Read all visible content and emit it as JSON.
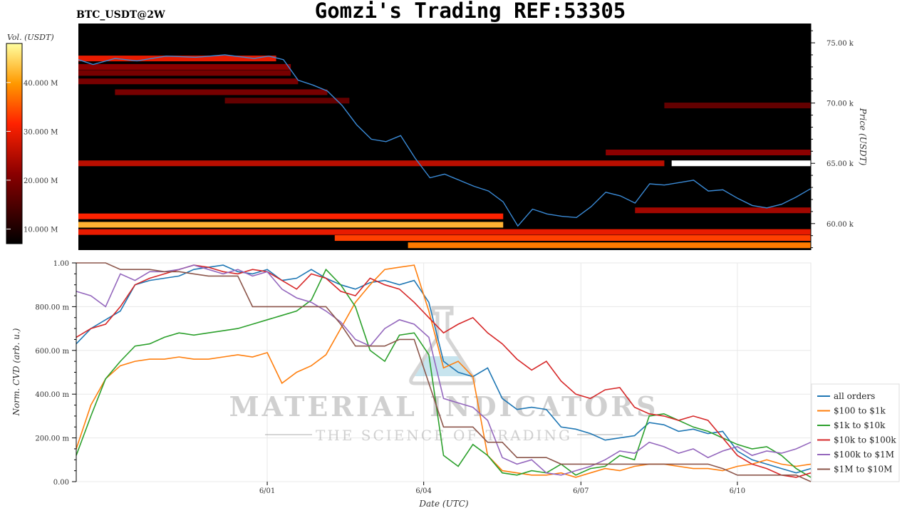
{
  "header": {
    "title": "Gomzi's Trading REF:53305",
    "pair": "BTC_USDT@2W"
  },
  "watermark": {
    "line1": "MATERIAL INDICATORS",
    "line2": "THE SCIENCE OF TRADING"
  },
  "colors": {
    "heatmap_bg": "#000000",
    "price_line": "#3a8ad6",
    "all_orders": "#1f77b4",
    "100_to_1k": "#ff7f0e",
    "1k_to_10k": "#2ca02c",
    "10k_to_100k": "#d62728",
    "100k_to_1M": "#9467bd",
    "1M_to_10M": "#8c564b"
  },
  "chart_data": [
    {
      "type": "heatmap",
      "ylabel": "Price (USDT)",
      "ytick_labels": [
        "75.00 k",
        "70.00 k",
        "65.00 k",
        "60.00 k"
      ],
      "yticks": [
        75000,
        70000,
        65000,
        60000
      ],
      "ylim": [
        57800,
        76600
      ],
      "colorbar": {
        "label": "Vol. (USDT)",
        "tick_labels": [
          "40.000 M",
          "30.000 M",
          "20.000 M",
          "10.000 M"
        ],
        "ticks": [
          40,
          30,
          20,
          10
        ],
        "range": [
          7,
          48
        ],
        "colormap": "hot"
      },
      "liquidity_bands": [
        {
          "price": 73700,
          "start": 0.0,
          "end": 0.27,
          "intensity": 0.55
        },
        {
          "price": 73000,
          "start": 0.0,
          "end": 0.29,
          "intensity": 0.35
        },
        {
          "price": 72500,
          "start": 0.0,
          "end": 0.29,
          "intensity": 0.3
        },
        {
          "price": 71800,
          "start": 0.0,
          "end": 0.3,
          "intensity": 0.3
        },
        {
          "price": 70900,
          "start": 0.05,
          "end": 0.34,
          "intensity": 0.3
        },
        {
          "price": 70200,
          "start": 0.2,
          "end": 0.37,
          "intensity": 0.25
        },
        {
          "price": 69800,
          "start": 0.8,
          "end": 1.0,
          "intensity": 0.25
        },
        {
          "price": 65900,
          "start": 0.72,
          "end": 1.0,
          "intensity": 0.35
        },
        {
          "price": 65000,
          "start": 0.0,
          "end": 0.8,
          "intensity": 0.45
        },
        {
          "price": 65000,
          "start": 0.81,
          "end": 1.0,
          "intensity": 1.0
        },
        {
          "price": 61100,
          "start": 0.76,
          "end": 1.0,
          "intensity": 0.4
        },
        {
          "price": 60600,
          "start": 0.0,
          "end": 0.58,
          "intensity": 0.6
        },
        {
          "price": 59900,
          "start": 0.0,
          "end": 0.58,
          "intensity": 0.85
        },
        {
          "price": 59300,
          "start": 0.0,
          "end": 1.0,
          "intensity": 0.55
        },
        {
          "price": 58800,
          "start": 0.35,
          "end": 1.0,
          "intensity": 0.65
        },
        {
          "price": 58200,
          "start": 0.45,
          "end": 1.0,
          "intensity": 0.75
        }
      ],
      "price_series": {
        "x": [
          0.0,
          0.02,
          0.05,
          0.08,
          0.12,
          0.16,
          0.2,
          0.24,
          0.26,
          0.28,
          0.3,
          0.32,
          0.34,
          0.36,
          0.38,
          0.4,
          0.42,
          0.44,
          0.46,
          0.48,
          0.5,
          0.52,
          0.54,
          0.56,
          0.58,
          0.6,
          0.62,
          0.64,
          0.66,
          0.68,
          0.7,
          0.72,
          0.74,
          0.76,
          0.78,
          0.8,
          0.82,
          0.84,
          0.86,
          0.88,
          0.9,
          0.92,
          0.94,
          0.96,
          0.98,
          1.0
        ],
        "y": [
          73600,
          73200,
          73700,
          73500,
          73900,
          73800,
          74000,
          73700,
          73900,
          73600,
          71900,
          71500,
          71000,
          69800,
          68200,
          67000,
          66800,
          67300,
          65400,
          63800,
          64100,
          63600,
          63100,
          62700,
          61800,
          59800,
          61200,
          60800,
          60600,
          60500,
          61400,
          62600,
          62300,
          61700,
          63300,
          63200,
          63400,
          63600,
          62700,
          62800,
          62100,
          61500,
          61300,
          61600,
          62200,
          62900
        ]
      }
    },
    {
      "type": "line",
      "xlabel": "Date (UTC)",
      "ylabel": "Norm. CVD (arb. u.)",
      "ylim": [
        0,
        1
      ],
      "ytick_labels": [
        "0.00",
        "200.00 m",
        "400.00 m",
        "600.00 m",
        "800.00 m",
        "1.00"
      ],
      "yticks": [
        0,
        0.2,
        0.4,
        0.6,
        0.8,
        1.0
      ],
      "xtick_labels": [
        "6/01",
        "6/04",
        "6/07",
        "6/10"
      ],
      "xticks": [
        0.26,
        0.473,
        0.687,
        0.9
      ],
      "xlim": [
        0,
        1
      ],
      "legend": {
        "position": "right"
      },
      "x": [
        0.0,
        0.02,
        0.04,
        0.06,
        0.08,
        0.1,
        0.12,
        0.14,
        0.16,
        0.18,
        0.2,
        0.22,
        0.24,
        0.26,
        0.28,
        0.3,
        0.32,
        0.34,
        0.36,
        0.38,
        0.4,
        0.42,
        0.44,
        0.46,
        0.48,
        0.5,
        0.52,
        0.54,
        0.56,
        0.58,
        0.6,
        0.62,
        0.64,
        0.66,
        0.68,
        0.7,
        0.72,
        0.74,
        0.76,
        0.78,
        0.8,
        0.82,
        0.84,
        0.86,
        0.88,
        0.9,
        0.92,
        0.94,
        0.96,
        0.98,
        1.0
      ],
      "series": [
        {
          "name": "all orders",
          "color_key": "all_orders",
          "values": [
            0.63,
            0.7,
            0.74,
            0.78,
            0.9,
            0.92,
            0.93,
            0.94,
            0.97,
            0.98,
            0.99,
            0.96,
            0.95,
            0.97,
            0.92,
            0.93,
            0.97,
            0.93,
            0.9,
            0.88,
            0.91,
            0.92,
            0.9,
            0.92,
            0.82,
            0.55,
            0.5,
            0.48,
            0.52,
            0.38,
            0.33,
            0.34,
            0.33,
            0.25,
            0.24,
            0.22,
            0.19,
            0.2,
            0.21,
            0.27,
            0.26,
            0.23,
            0.24,
            0.22,
            0.23,
            0.14,
            0.1,
            0.08,
            0.06,
            0.04,
            0.06
          ]
        },
        {
          "name": "$100 to $1k",
          "color_key": "100_to_1k",
          "values": [
            0.15,
            0.35,
            0.47,
            0.53,
            0.55,
            0.56,
            0.56,
            0.57,
            0.56,
            0.56,
            0.57,
            0.58,
            0.57,
            0.59,
            0.45,
            0.5,
            0.53,
            0.58,
            0.7,
            0.82,
            0.9,
            0.97,
            0.98,
            0.99,
            0.78,
            0.52,
            0.55,
            0.48,
            0.12,
            0.05,
            0.04,
            0.03,
            0.03,
            0.04,
            0.02,
            0.04,
            0.06,
            0.05,
            0.07,
            0.08,
            0.08,
            0.07,
            0.06,
            0.06,
            0.05,
            0.07,
            0.08,
            0.1,
            0.08,
            0.07,
            0.08
          ]
        },
        {
          "name": "$1k to $10k",
          "color_key": "1k_to_10k",
          "values": [
            0.12,
            0.3,
            0.47,
            0.55,
            0.62,
            0.63,
            0.66,
            0.68,
            0.67,
            0.68,
            0.69,
            0.7,
            0.72,
            0.74,
            0.76,
            0.78,
            0.83,
            0.97,
            0.9,
            0.8,
            0.6,
            0.55,
            0.67,
            0.68,
            0.58,
            0.12,
            0.07,
            0.17,
            0.12,
            0.04,
            0.03,
            0.05,
            0.04,
            0.08,
            0.03,
            0.06,
            0.07,
            0.12,
            0.1,
            0.3,
            0.31,
            0.28,
            0.25,
            0.23,
            0.2,
            0.17,
            0.15,
            0.16,
            0.12,
            0.06,
            0.02
          ]
        },
        {
          "name": "$10k to $100k",
          "color_key": "10k_to_100k",
          "values": [
            0.66,
            0.7,
            0.72,
            0.8,
            0.9,
            0.93,
            0.95,
            0.97,
            0.99,
            0.98,
            0.96,
            0.95,
            0.97,
            0.96,
            0.92,
            0.88,
            0.95,
            0.93,
            0.87,
            0.85,
            0.93,
            0.9,
            0.88,
            0.82,
            0.75,
            0.68,
            0.72,
            0.75,
            0.68,
            0.63,
            0.56,
            0.51,
            0.55,
            0.46,
            0.4,
            0.38,
            0.42,
            0.43,
            0.34,
            0.31,
            0.3,
            0.28,
            0.3,
            0.28,
            0.2,
            0.12,
            0.08,
            0.06,
            0.03,
            0.02,
            0.04
          ]
        },
        {
          "name": "$100k to $1M",
          "color_key": "100k_to_1M",
          "values": [
            0.87,
            0.85,
            0.8,
            0.95,
            0.92,
            0.96,
            0.96,
            0.97,
            0.99,
            0.97,
            0.95,
            0.97,
            0.94,
            0.96,
            0.88,
            0.84,
            0.82,
            0.78,
            0.73,
            0.65,
            0.62,
            0.7,
            0.74,
            0.72,
            0.66,
            0.38,
            0.36,
            0.34,
            0.28,
            0.11,
            0.08,
            0.1,
            0.04,
            0.03,
            0.05,
            0.07,
            0.1,
            0.14,
            0.13,
            0.18,
            0.16,
            0.13,
            0.15,
            0.11,
            0.14,
            0.16,
            0.12,
            0.14,
            0.13,
            0.15,
            0.18
          ]
        },
        {
          "name": "$1M to $10M",
          "color_key": "1M_to_10M",
          "values": [
            1.0,
            1.0,
            1.0,
            0.97,
            0.97,
            0.97,
            0.96,
            0.96,
            0.95,
            0.94,
            0.94,
            0.94,
            0.8,
            0.8,
            0.8,
            0.8,
            0.8,
            0.8,
            0.72,
            0.62,
            0.62,
            0.62,
            0.65,
            0.65,
            0.45,
            0.25,
            0.25,
            0.25,
            0.18,
            0.18,
            0.11,
            0.11,
            0.11,
            0.08,
            0.08,
            0.08,
            0.08,
            0.08,
            0.08,
            0.08,
            0.08,
            0.08,
            0.08,
            0.08,
            0.06,
            0.03,
            0.03,
            0.03,
            0.03,
            0.03,
            0.0
          ]
        }
      ]
    }
  ]
}
